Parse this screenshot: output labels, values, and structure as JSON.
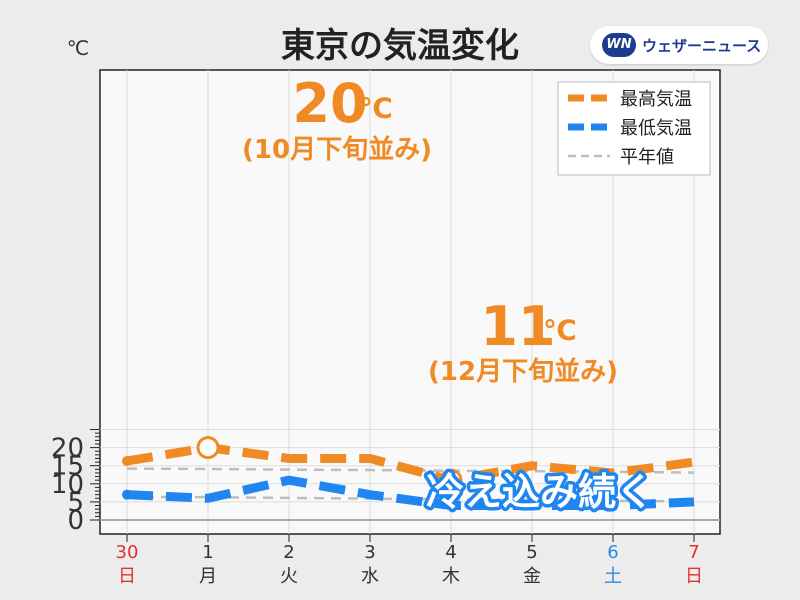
{
  "header": {
    "title": "東京の気温変化",
    "logo_mark": "WN",
    "logo_text": "ウェザーニュース"
  },
  "colors": {
    "high": "#f08a24",
    "low": "#1f86f0",
    "normal": "#bdbdbd",
    "sunday": "#e03131",
    "saturday": "#2a8ae0",
    "weekday": "#333333",
    "text_highlight_blue": "#1f86f0"
  },
  "chart_data": {
    "type": "line",
    "title": "東京の気温変化",
    "ylabel": "℃",
    "ylim": [
      0,
      25
    ],
    "yticks": [
      0,
      5,
      10,
      15,
      20
    ],
    "grid": true,
    "legend_position": "top-right",
    "categories": [
      {
        "date": "30",
        "weekday": "日",
        "day_type": "sunday"
      },
      {
        "date": "1",
        "weekday": "月",
        "day_type": "weekday"
      },
      {
        "date": "2",
        "weekday": "火",
        "day_type": "weekday"
      },
      {
        "date": "3",
        "weekday": "水",
        "day_type": "weekday"
      },
      {
        "date": "4",
        "weekday": "木",
        "day_type": "weekday"
      },
      {
        "date": "5",
        "weekday": "金",
        "day_type": "weekday"
      },
      {
        "date": "6",
        "weekday": "土",
        "day_type": "saturday"
      },
      {
        "date": "7",
        "weekday": "日",
        "day_type": "sunday"
      }
    ],
    "series": [
      {
        "name": "最高気温",
        "key": "high",
        "style": "dashed-thick",
        "values": [
          16.3,
          20,
          17,
          17,
          11,
          15,
          13,
          16
        ]
      },
      {
        "name": "最低気温",
        "key": "low",
        "style": "dashed-thick",
        "values": [
          7,
          6,
          11,
          7,
          4,
          4,
          4,
          5
        ]
      },
      {
        "name": "平年値",
        "key": "normal",
        "style": "dashed-thin",
        "values": [
          14.2,
          14.1,
          13.9,
          13.8,
          13.6,
          13.5,
          13.3,
          13.1
        ]
      },
      {
        "name": "平年値",
        "key": "normal",
        "style": "dashed-thin",
        "values": [
          6.4,
          6.3,
          6.1,
          5.9,
          5.7,
          5.5,
          5.3,
          5.1
        ]
      }
    ],
    "annotations": [
      {
        "series": "high",
        "index": 1,
        "value_text": "20",
        "unit": "℃",
        "note": "(10月下旬並み)"
      },
      {
        "series": "high",
        "index": 4,
        "value_text": "11",
        "unit": "℃",
        "note": "(12月下旬並み)"
      }
    ],
    "callout": "冷え込み続く"
  }
}
